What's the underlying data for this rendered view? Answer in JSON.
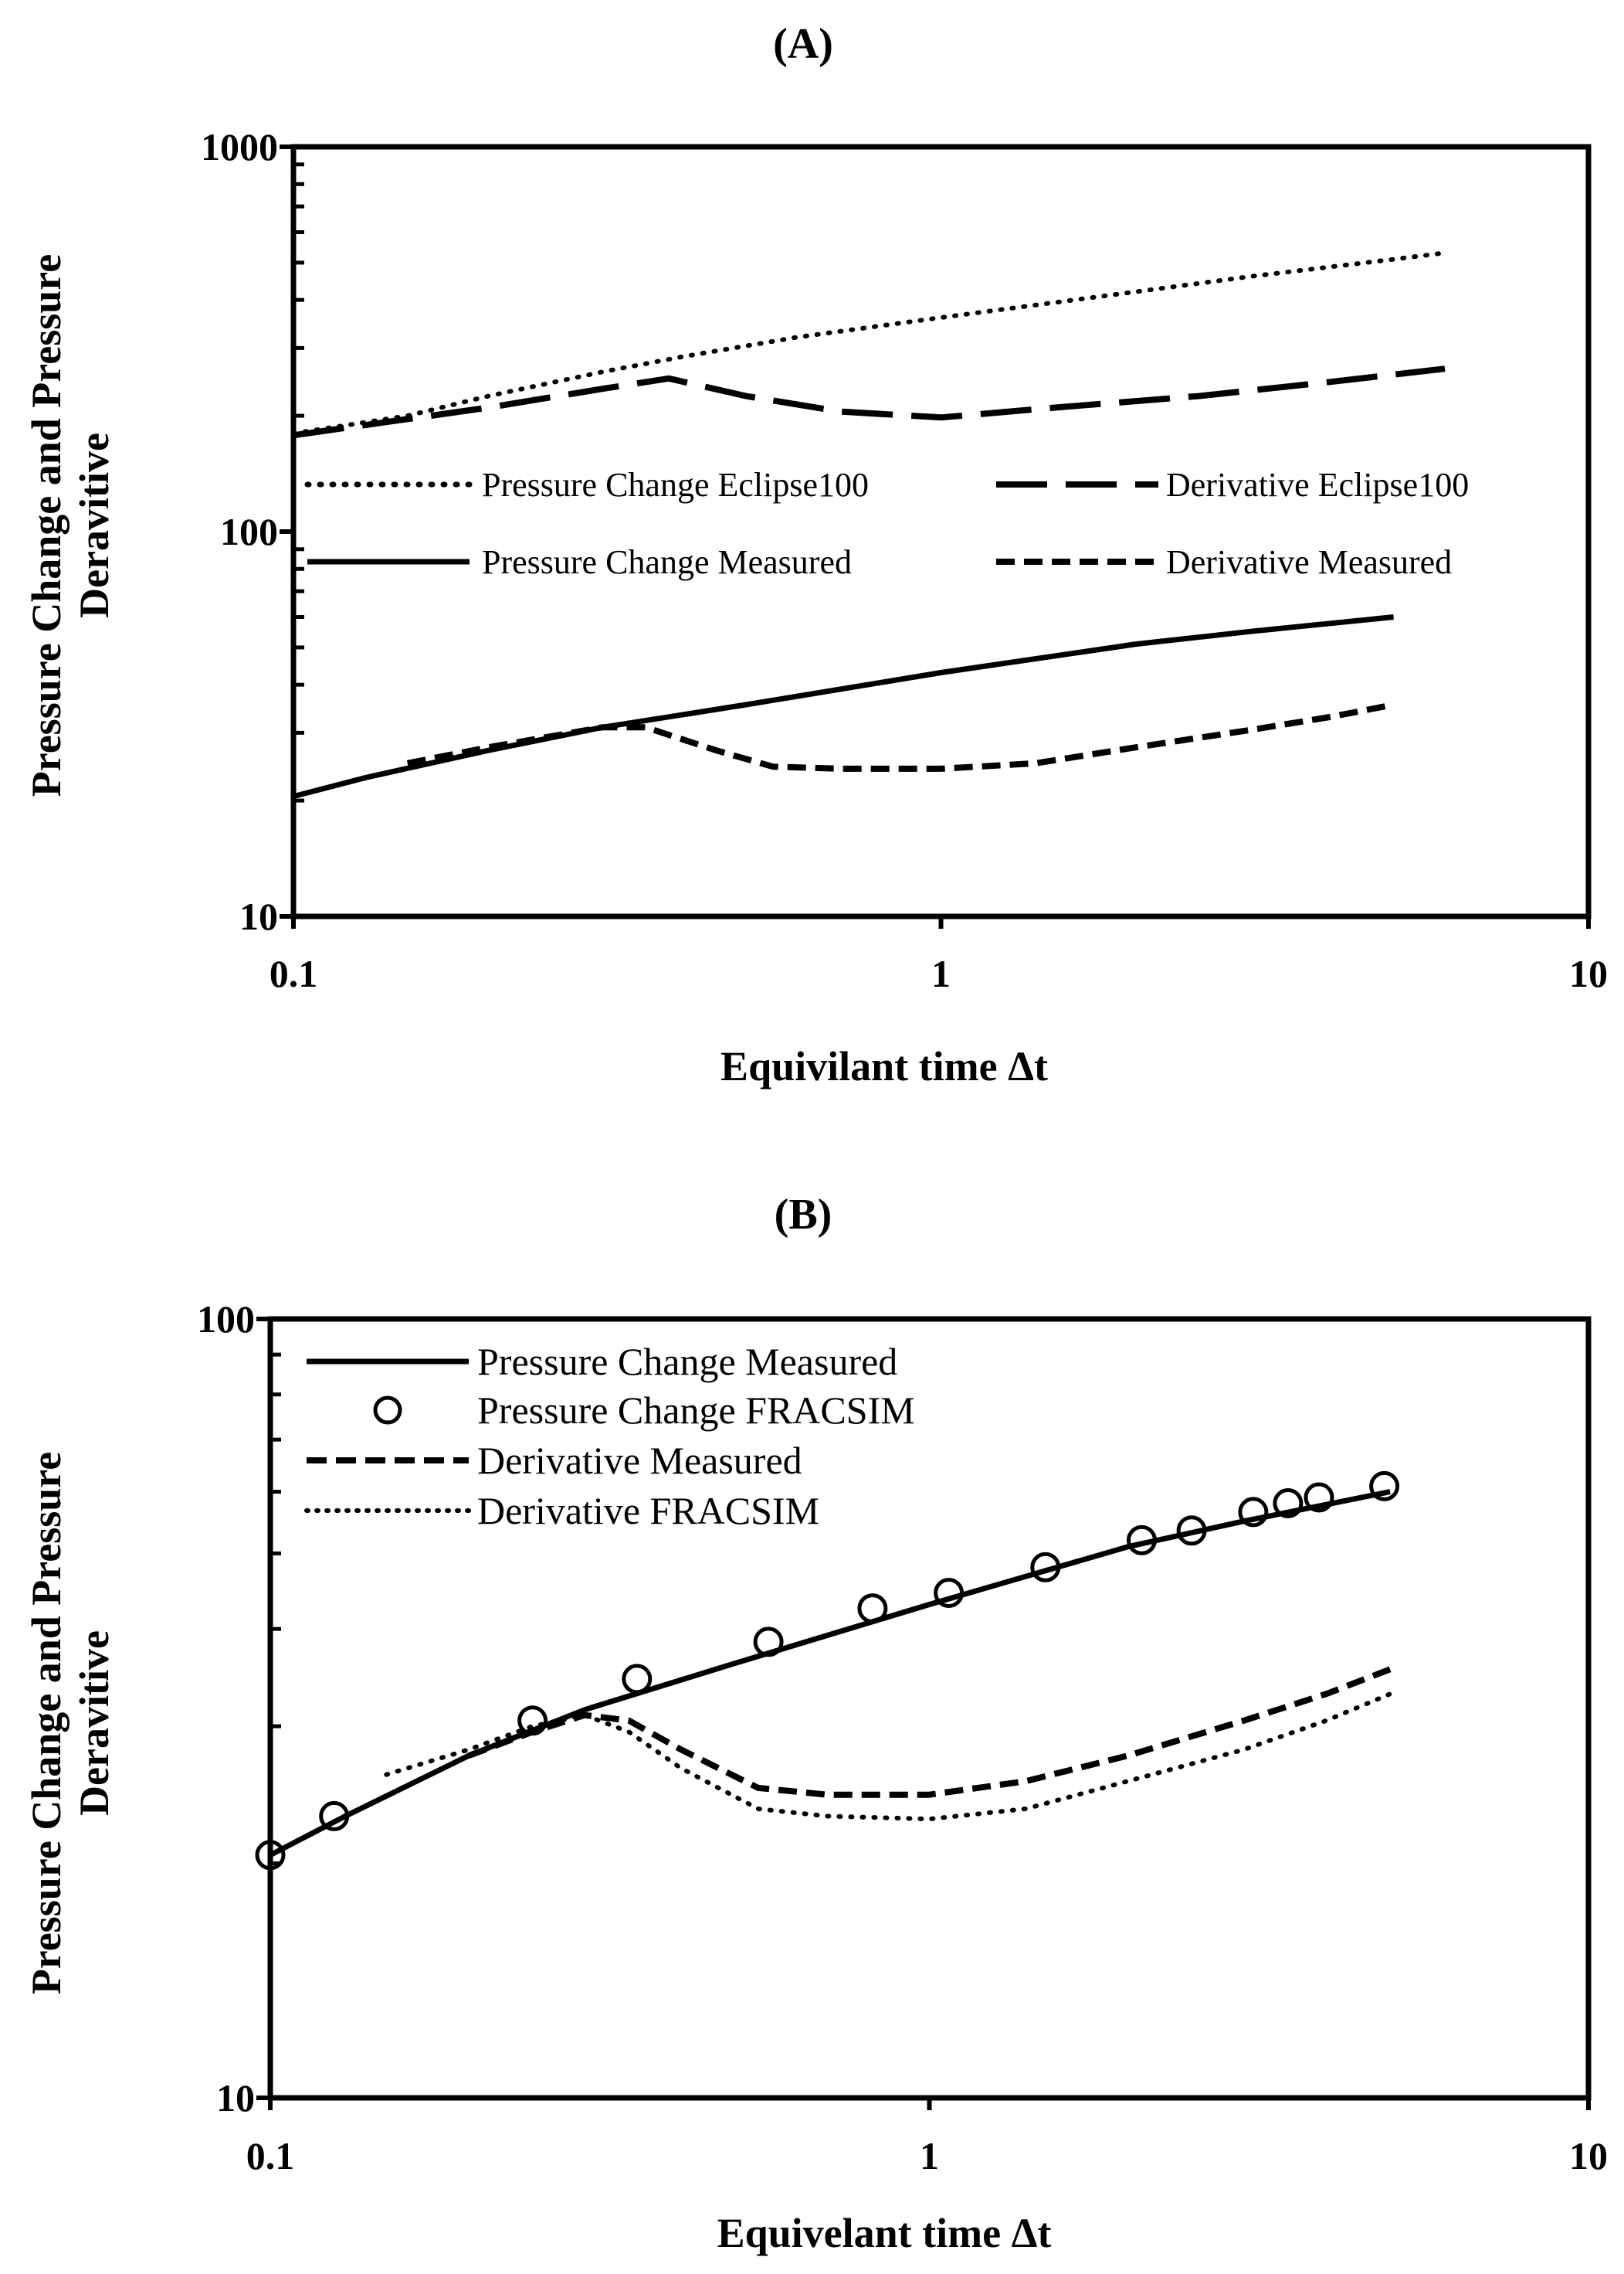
{
  "chart_data": [
    {
      "type": "line",
      "title": "(A)",
      "xlabel": "Equivilant time Δt",
      "ylabel": [
        "Pressure Change and Pressure",
        "Deravitive"
      ],
      "xscale": "log",
      "yscale": "log",
      "xlim": [
        0.1,
        10
      ],
      "ylim": [
        10,
        1000
      ],
      "x_ticks": [
        0.1,
        1,
        10
      ],
      "x_tick_labels": [
        "0.1",
        "1",
        "10"
      ],
      "y_ticks": [
        10,
        100,
        1000
      ],
      "y_tick_labels": [
        "10",
        "100",
        "1000"
      ],
      "grid": false,
      "legend_position": "middle",
      "series": [
        {
          "name": "Pressure Change Eclipse100",
          "style": "dotted",
          "x": [
            0.1,
            0.15,
            0.2,
            0.3,
            0.4,
            0.6,
            1,
            2,
            3,
            5,
            6
          ],
          "y": [
            180,
            200,
            225,
            260,
            285,
            320,
            360,
            420,
            460,
            510,
            530
          ]
        },
        {
          "name": "Derivative Eclipse100",
          "style": "long-dash",
          "x": [
            0.1,
            0.2,
            0.3,
            0.38,
            0.5,
            0.7,
            1,
            1.5,
            2.5,
            4,
            6
          ],
          "y": [
            178,
            210,
            235,
            250,
            225,
            205,
            198,
            210,
            225,
            245,
            265
          ]
        },
        {
          "name": "Pressure Change Measured",
          "style": "solid",
          "x": [
            0.1,
            0.13,
            0.2,
            0.3,
            0.5,
            1,
            2,
            3,
            5
          ],
          "y": [
            20.5,
            23,
            27,
            31,
            35.5,
            43,
            51,
            55,
            60
          ]
        },
        {
          "name": "Derivative Measured",
          "style": "dashed",
          "x": [
            0.15,
            0.2,
            0.3,
            0.35,
            0.45,
            0.55,
            0.7,
            1,
            1.4,
            2,
            3,
            4,
            5
          ],
          "y": [
            25,
            27.5,
            31,
            31,
            27,
            24.5,
            24.2,
            24.2,
            25,
            27.5,
            30.5,
            33,
            35.5
          ]
        }
      ]
    },
    {
      "type": "line",
      "title": "(B)",
      "xlabel": "Equivelant time Δt",
      "ylabel": [
        "Pressure Change and Pressure",
        "Deravitive"
      ],
      "xscale": "log",
      "yscale": "log",
      "xlim": [
        0.1,
        10
      ],
      "ylim": [
        10,
        100
      ],
      "x_ticks": [
        0.1,
        1,
        10
      ],
      "x_tick_labels": [
        "0.1",
        "1",
        "10"
      ],
      "y_ticks": [
        10,
        100
      ],
      "y_tick_labels": [
        "10",
        "100"
      ],
      "grid": false,
      "legend_position": "top-left",
      "series": [
        {
          "name": "Pressure Change Measured",
          "style": "solid",
          "marker": "none",
          "x": [
            0.1,
            0.13,
            0.2,
            0.3,
            0.5,
            1,
            2,
            3,
            5
          ],
          "y": [
            20.5,
            23,
            27.5,
            31.5,
            36,
            43,
            51,
            55,
            60
          ]
        },
        {
          "name": "Pressure Change FRACSIM",
          "style": "none",
          "marker": "circle",
          "x": [
            0.1,
            0.125,
            0.25,
            0.36,
            0.57,
            0.82,
            1.07,
            1.5,
            2.1,
            2.5,
            3.1,
            3.5,
            3.9,
            4.9
          ],
          "y": [
            20.5,
            23,
            30.5,
            34.5,
            38.5,
            42.5,
            44.5,
            48,
            52,
            53.5,
            56.5,
            58,
            59,
            61
          ]
        },
        {
          "name": "Derivative Measured",
          "style": "dashed",
          "marker": "none",
          "x": [
            0.2,
            0.25,
            0.3,
            0.35,
            0.42,
            0.55,
            0.7,
            1,
            1.4,
            2,
            3,
            4,
            5
          ],
          "y": [
            27.5,
            29.5,
            31,
            30.5,
            28,
            25,
            24.5,
            24.5,
            25.5,
            27.5,
            30.5,
            33,
            35.5
          ]
        },
        {
          "name": "Derivative FRACSIM",
          "style": "dotted",
          "marker": "none",
          "x": [
            0.15,
            0.2,
            0.25,
            0.3,
            0.35,
            0.42,
            0.55,
            0.7,
            1,
            1.4,
            2,
            3,
            4,
            5
          ],
          "y": [
            26,
            28,
            30,
            31,
            29.5,
            26.5,
            23.5,
            23,
            22.8,
            23.5,
            25.5,
            28,
            30.5,
            33
          ]
        }
      ]
    }
  ]
}
